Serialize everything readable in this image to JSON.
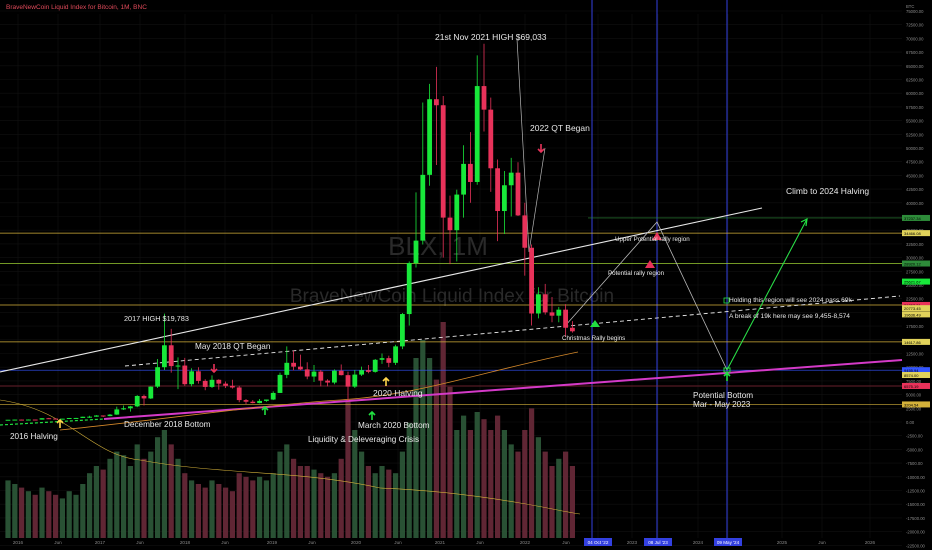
{
  "header": {
    "symbol_title": "BraveNewCoin Liquid Index for Bitcoin, 1M, BNC"
  },
  "watermark": {
    "ticker": "BLX, 1M",
    "name": "BraveNewCoin Liquid Index for Bitcoin"
  },
  "colors": {
    "up": "#18e83a",
    "down": "#e8325a",
    "support": "#d43ac8",
    "hline": "#d4b13a",
    "vline": "#3340e0",
    "arrow": "#20e040"
  },
  "chart_data": {
    "type": "candlestick",
    "x_ticks": [
      "2016",
      "Jun",
      "2017",
      "Jun",
      "2018",
      "Jun",
      "2019",
      "Jun",
      "2020",
      "Jun",
      "2021",
      "Jun",
      "2022",
      "Jun",
      "04 Oct '22",
      "2023",
      "08 Jul '23",
      "2024",
      "09 May '24",
      "2025",
      "Jun",
      "2026"
    ],
    "y_ticks": [
      "BTC",
      "75000.00",
      "72500.00",
      "70000.00",
      "67500.00",
      "65000.00",
      "62500.00",
      "60000.00",
      "57500.00",
      "55000.00",
      "52500.00",
      "50000.00",
      "47500.00",
      "45000.00",
      "42500.00",
      "40000.00",
      "37500.00",
      "35000.00",
      "32500.00",
      "30000.00",
      "27500.00",
      "25000.00",
      "22500.00",
      "20000.00",
      "17500.00",
      "15000.00",
      "12500.00",
      "10000.00",
      "7500.00",
      "5000.00",
      "2500.00",
      "0.00",
      "-2500.00",
      "-5000.00",
      "-7500.00",
      "-10000.00",
      "-12500.00",
      "-15000.00",
      "-17500.00",
      "-20000.00",
      "-22500.00"
    ],
    "price_labels": [
      "37237.34",
      "34466.08",
      "28920.12",
      "25621.67",
      "21357.21",
      "20773.45",
      "19636.49",
      "14617.86",
      "9455.94",
      "8574.00",
      "6575.19",
      "3204.54"
    ],
    "annotations": [
      "21st Nov 2021 HIGH $69,033",
      "2022 QT Began",
      "Climb to 2024 Halving",
      "Upper Potential rally region",
      "Potential rally region",
      "Holding this region will see 2024 pass 69k",
      "A break of 19k here may see 9,455-8,574",
      "Christmas Rally begins",
      "2017 HIGH $19,783",
      "May 2018 QT Began",
      "2020 Halving",
      "Potential Bottom",
      "Mar - May 2023",
      "December 2018 Bottom",
      "March 2020 Bottom",
      "2016 Halving",
      "Liquidity & Deleveraging Crisis"
    ],
    "candles": [
      [
        400,
        420,
        380,
        410
      ],
      [
        410,
        460,
        400,
        440
      ],
      [
        440,
        450,
        370,
        420
      ],
      [
        420,
        470,
        410,
        450
      ],
      [
        450,
        460,
        420,
        440
      ],
      [
        440,
        700,
        430,
        690
      ],
      [
        690,
        750,
        600,
        630
      ],
      [
        630,
        640,
        560,
        600
      ],
      [
        600,
        620,
        590,
        610
      ],
      [
        610,
        740,
        600,
        730
      ],
      [
        730,
        760,
        700,
        740
      ],
      [
        740,
        970,
        730,
        960
      ],
      [
        960,
        1150,
        750,
        970
      ],
      [
        970,
        1250,
        950,
        1190
      ],
      [
        1190,
        1200,
        900,
        1080
      ],
      [
        1080,
        1450,
        1050,
        1350
      ],
      [
        1350,
        2800,
        1300,
        2300
      ],
      [
        2300,
        3000,
        2200,
        2500
      ],
      [
        2500,
        2950,
        1900,
        2850
      ],
      [
        2850,
        4900,
        2700,
        4750
      ],
      [
        4750,
        5000,
        3000,
        4300
      ],
      [
        4300,
        6500,
        4200,
        6450
      ],
      [
        6450,
        11500,
        6200,
        10000
      ],
      [
        10000,
        19783,
        9500,
        14000
      ],
      [
        14000,
        17000,
        9000,
        10200
      ],
      [
        10200,
        11800,
        6000,
        10300
      ],
      [
        10300,
        11700,
        6600,
        6900
      ],
      [
        6900,
        9800,
        6500,
        9250
      ],
      [
        9250,
        10000,
        7000,
        7500
      ],
      [
        7500,
        7800,
        5800,
        6400
      ],
      [
        6400,
        8500,
        6200,
        7700
      ],
      [
        7700,
        7800,
        5900,
        7000
      ],
      [
        7000,
        7400,
        6200,
        6600
      ],
      [
        6600,
        7700,
        6100,
        6300
      ],
      [
        6300,
        6600,
        3600,
        4000
      ],
      [
        4000,
        4200,
        3200,
        3700
      ],
      [
        3700,
        4000,
        3400,
        3450
      ],
      [
        3450,
        4200,
        3400,
        3850
      ],
      [
        3850,
        4100,
        3700,
        4100
      ],
      [
        4100,
        5600,
        4000,
        5300
      ],
      [
        5300,
        9000,
        5300,
        8600
      ],
      [
        8600,
        13800,
        8000,
        10800
      ],
      [
        10800,
        13000,
        9400,
        10100
      ],
      [
        10100,
        12300,
        9400,
        9600
      ],
      [
        9600,
        10900,
        7800,
        8300
      ],
      [
        8300,
        10400,
        7300,
        9200
      ],
      [
        9200,
        9500,
        6500,
        7550
      ],
      [
        7550,
        7800,
        6500,
        7200
      ],
      [
        7200,
        9600,
        6900,
        9350
      ],
      [
        9350,
        10500,
        8500,
        8550
      ],
      [
        8550,
        9200,
        3800,
        6450
      ],
      [
        6450,
        9500,
        6200,
        8650
      ],
      [
        8650,
        10100,
        8400,
        9450
      ],
      [
        9450,
        10400,
        8900,
        9150
      ],
      [
        9150,
        11500,
        9000,
        11350
      ],
      [
        11350,
        12500,
        10600,
        11650
      ],
      [
        11650,
        12100,
        10000,
        10800
      ],
      [
        10800,
        14100,
        10400,
        13800
      ],
      [
        13800,
        19900,
        13300,
        19700
      ],
      [
        19700,
        29300,
        17600,
        29000
      ],
      [
        29000,
        41900,
        28200,
        33100
      ],
      [
        33100,
        58300,
        32400,
        45100
      ],
      [
        45100,
        61700,
        43100,
        58900
      ],
      [
        58900,
        64800,
        46900,
        57800
      ],
      [
        57800,
        59500,
        30000,
        37300
      ],
      [
        37300,
        41300,
        28800,
        35000
      ],
      [
        35000,
        42400,
        29300,
        41500
      ],
      [
        41500,
        50500,
        37300,
        47100
      ],
      [
        47100,
        52900,
        40000,
        43800
      ],
      [
        43800,
        66900,
        43300,
        61300
      ],
      [
        61300,
        69033,
        53000,
        57000
      ],
      [
        57000,
        59200,
        42000,
        46300
      ],
      [
        46300,
        47900,
        33000,
        38500
      ],
      [
        38500,
        45800,
        34300,
        43200
      ],
      [
        43200,
        48200,
        37500,
        45500
      ],
      [
        45500,
        47400,
        37600,
        37700
      ],
      [
        37700,
        40000,
        26700,
        31800
      ],
      [
        31800,
        32400,
        17600,
        19800
      ],
      [
        19800,
        24600,
        18900,
        23300
      ],
      [
        23300,
        25200,
        19600,
        20000
      ],
      [
        20000,
        22800,
        18200,
        19400
      ],
      [
        19400,
        21000,
        18200,
        20500
      ],
      [
        20500,
        21500,
        15500,
        17200
      ],
      [
        17200,
        18400,
        16300,
        16550
      ]
    ],
    "volume": [
      0.16,
      0.15,
      0.14,
      0.13,
      0.12,
      0.14,
      0.13,
      0.12,
      0.11,
      0.13,
      0.12,
      0.15,
      0.18,
      0.2,
      0.19,
      0.22,
      0.24,
      0.23,
      0.2,
      0.26,
      0.22,
      0.24,
      0.28,
      0.3,
      0.26,
      0.22,
      0.18,
      0.16,
      0.15,
      0.14,
      0.16,
      0.15,
      0.14,
      0.13,
      0.18,
      0.17,
      0.16,
      0.17,
      0.16,
      0.18,
      0.24,
      0.26,
      0.22,
      0.2,
      0.2,
      0.19,
      0.18,
      0.17,
      0.18,
      0.22,
      0.38,
      0.3,
      0.24,
      0.2,
      0.18,
      0.2,
      0.19,
      0.18,
      0.24,
      0.32,
      0.5,
      0.55,
      0.5,
      0.44,
      0.6,
      0.42,
      0.3,
      0.34,
      0.3,
      0.35,
      0.33,
      0.3,
      0.34,
      0.3,
      0.26,
      0.24,
      0.3,
      0.36,
      0.28,
      0.24,
      0.2,
      0.22,
      0.24,
      0.2
    ]
  }
}
